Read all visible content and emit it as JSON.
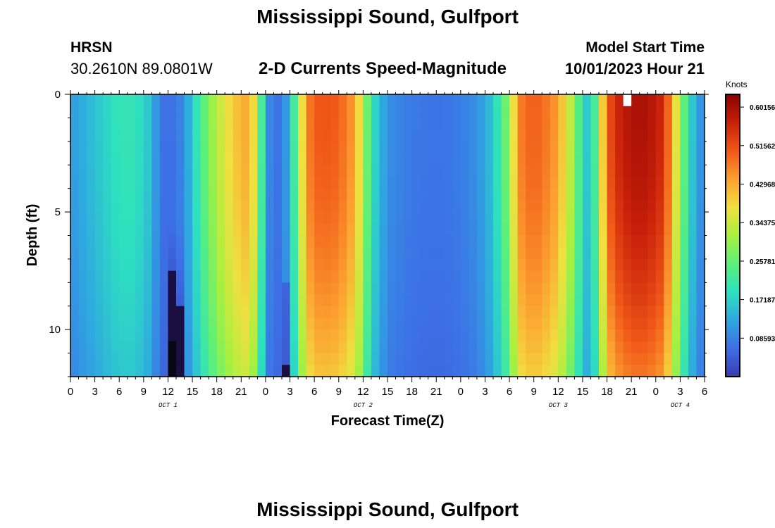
{
  "page": {
    "title": "Mississippi Sound, Gulfport",
    "station": "HRSN",
    "coordinates": "30.2610N  89.0801W",
    "subtitle": "2-D Currents Speed-Magnitude",
    "model_start_label": "Model Start Time",
    "model_start_value": "10/01/2023 Hour 21",
    "units": "Knots",
    "footer_title": "Mississippi Sound, Gulfport"
  },
  "colors": {
    "scale": [
      "#3b3bb0",
      "#3d6fe6",
      "#2fa8e0",
      "#2ee0c0",
      "#5cf07a",
      "#a8f040",
      "#f0e040",
      "#fca030",
      "#f05818",
      "#c8200a",
      "#8a0000"
    ],
    "axis": "#000000",
    "missing": "#ffffff"
  },
  "chart_data": {
    "type": "heatmap",
    "title": "2-D Currents Speed-Magnitude",
    "xlabel": "Forecast Time(Z)",
    "ylabel": "Depth (ft)",
    "x_range_hours": [
      0,
      78
    ],
    "x_ticks_hours": [
      0,
      3,
      6,
      9,
      12,
      15,
      18,
      21,
      24,
      27,
      30,
      33,
      36,
      39,
      42,
      45,
      48,
      51,
      54,
      57,
      60,
      63,
      66,
      69,
      72,
      75,
      78
    ],
    "x_tick_labels": [
      "0",
      "3",
      "6",
      "9",
      "12",
      "15",
      "18",
      "21",
      "0",
      "3",
      "6",
      "9",
      "12",
      "15",
      "18",
      "21",
      "0",
      "3",
      "6",
      "9",
      "12",
      "15",
      "18",
      "21",
      "0",
      "3",
      "6"
    ],
    "day_labels": [
      {
        "hour": 12,
        "text": "OCT 1"
      },
      {
        "hour": 36,
        "text": "OCT 2"
      },
      {
        "hour": 60,
        "text": "OCT 3"
      },
      {
        "hour": 75,
        "text": "OCT 4"
      }
    ],
    "y_range_ft": [
      0,
      12
    ],
    "y_ticks": [
      0,
      5,
      10
    ],
    "y_tick_labels": [
      "0",
      "5",
      "10"
    ],
    "depth_levels_ft": [
      0.25,
      0.75,
      1.25,
      1.75,
      2.25,
      2.75,
      3.25,
      3.75,
      4.25,
      4.75,
      5.25,
      5.75,
      6.25,
      6.75,
      7.25,
      7.75,
      8.25,
      8.75,
      9.25,
      9.75,
      10.25,
      10.75,
      11.25,
      11.75
    ],
    "surface_speed_profile": {
      "time_hours": [
        0,
        2,
        4,
        6,
        8,
        10,
        11,
        12,
        13,
        14,
        16,
        18,
        20,
        22,
        23,
        24,
        25,
        26,
        27,
        28,
        29,
        30,
        31,
        33,
        35,
        36,
        37,
        38,
        39,
        40,
        42,
        44,
        46,
        48,
        50,
        52,
        54,
        55,
        56,
        57,
        58,
        60,
        62,
        63,
        64,
        65,
        66,
        67,
        68,
        70,
        72,
        73,
        74,
        75,
        76,
        77,
        78
      ],
      "speed_knots": [
        0.11,
        0.14,
        0.17,
        0.2,
        0.2,
        0.15,
        0.07,
        0.06,
        0.07,
        0.1,
        0.23,
        0.33,
        0.4,
        0.44,
        0.33,
        0.12,
        0.06,
        0.08,
        0.14,
        0.3,
        0.46,
        0.5,
        0.51,
        0.5,
        0.44,
        0.33,
        0.2,
        0.15,
        0.1,
        0.09,
        0.075,
        0.07,
        0.07,
        0.08,
        0.1,
        0.16,
        0.3,
        0.46,
        0.49,
        0.5,
        0.49,
        0.44,
        0.3,
        0.18,
        0.15,
        0.3,
        0.5,
        0.55,
        0.58,
        0.6,
        0.58,
        0.55,
        0.44,
        0.3,
        0.2,
        0.12,
        0.09
      ]
    },
    "depth_attenuation": "speed decreases toward bottom (approx. 20% lower at 12 ft); near-zero values near hour 12-13 and 26-27 at depth",
    "colorbar": {
      "min": 0.0,
      "max": 0.63,
      "tick_values": [
        0.08593,
        0.17187,
        0.25781,
        0.34375,
        0.42968,
        0.51562,
        0.60156
      ],
      "tick_labels": [
        "0.08593",
        "0.17187",
        "0.25781",
        "0.34375",
        "0.42968",
        "0.51562",
        "0.60156"
      ]
    },
    "missing_cell": {
      "hour": 68,
      "depth_ft": 0.25
    }
  }
}
